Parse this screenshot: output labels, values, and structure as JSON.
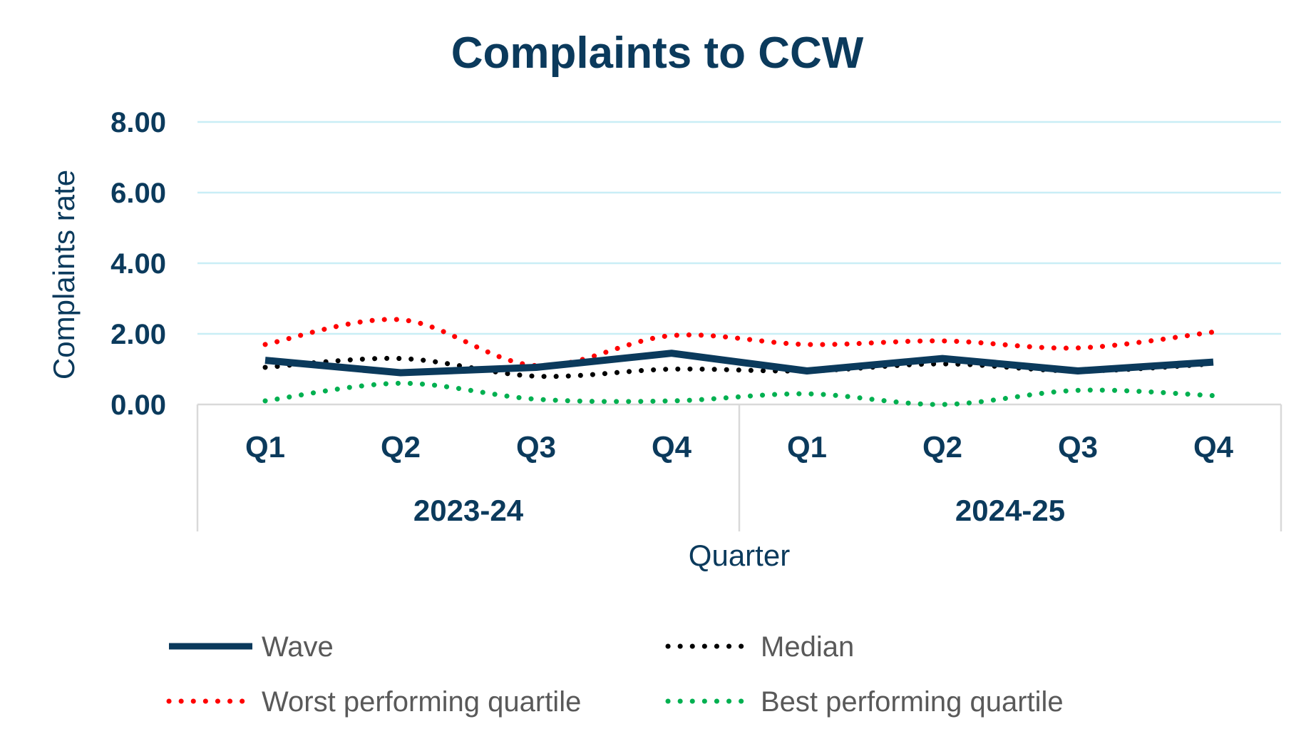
{
  "chart_data": {
    "type": "line",
    "title": "Complaints to CCW",
    "xlabel": "Quarter",
    "ylabel": "Complaints rate",
    "ylim": [
      0,
      8
    ],
    "yticks": [
      "0.00",
      "2.00",
      "4.00",
      "6.00",
      "8.00"
    ],
    "categories": [
      "Q1",
      "Q2",
      "Q3",
      "Q4",
      "Q1",
      "Q2",
      "Q3",
      "Q4"
    ],
    "groups": [
      {
        "label": "2023-24",
        "span": 4
      },
      {
        "label": "2024-25",
        "span": 4
      }
    ],
    "grid": true,
    "legend_position": "bottom",
    "series": [
      {
        "name": "Wave",
        "values": [
          1.25,
          0.9,
          1.05,
          1.45,
          0.95,
          1.3,
          0.95,
          1.2
        ],
        "color": "#0b3a5c",
        "style": "solid"
      },
      {
        "name": "Median",
        "values": [
          1.05,
          1.3,
          0.8,
          1.0,
          0.95,
          1.15,
          0.95,
          1.15
        ],
        "color": "#000000",
        "style": "dotted"
      },
      {
        "name": "Worst performing quartile",
        "values": [
          1.7,
          2.4,
          1.1,
          1.95,
          1.7,
          1.8,
          1.6,
          2.05
        ],
        "color": "#ff0000",
        "style": "dotted"
      },
      {
        "name": "Best performing quartile",
        "values": [
          0.1,
          0.6,
          0.15,
          0.1,
          0.3,
          0.0,
          0.4,
          0.25
        ],
        "color": "#00b050",
        "style": "dotted"
      }
    ]
  }
}
